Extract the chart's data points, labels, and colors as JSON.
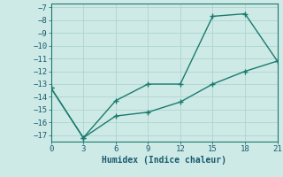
{
  "line1_x": [
    0,
    3,
    6,
    9,
    12,
    15,
    18,
    21
  ],
  "line1_y": [
    -13.3,
    -17.2,
    -14.3,
    -13.0,
    -13.0,
    -7.7,
    -7.5,
    -11.2
  ],
  "line2_x": [
    0,
    3,
    6,
    9,
    12,
    15,
    18,
    21
  ],
  "line2_y": [
    -13.3,
    -17.2,
    -15.5,
    -15.2,
    -14.4,
    -13.0,
    -12.0,
    -11.2
  ],
  "line_color": "#1a7a6e",
  "marker": "+",
  "xlabel": "Humidex (Indice chaleur)",
  "xlim": [
    0,
    21
  ],
  "ylim": [
    -17.5,
    -6.7
  ],
  "yticks": [
    -7,
    -8,
    -9,
    -10,
    -11,
    -12,
    -13,
    -14,
    -15,
    -16,
    -17
  ],
  "xticks": [
    0,
    3,
    6,
    9,
    12,
    15,
    18,
    21
  ],
  "bg_color": "#ceeae6",
  "grid_color": "#aed4ce",
  "font_color": "#1a5a6e",
  "xlabel_fontsize": 7,
  "tick_fontsize": 6.5,
  "linewidth": 1.0,
  "marker_size": 5,
  "marker_linewidth": 1.0
}
